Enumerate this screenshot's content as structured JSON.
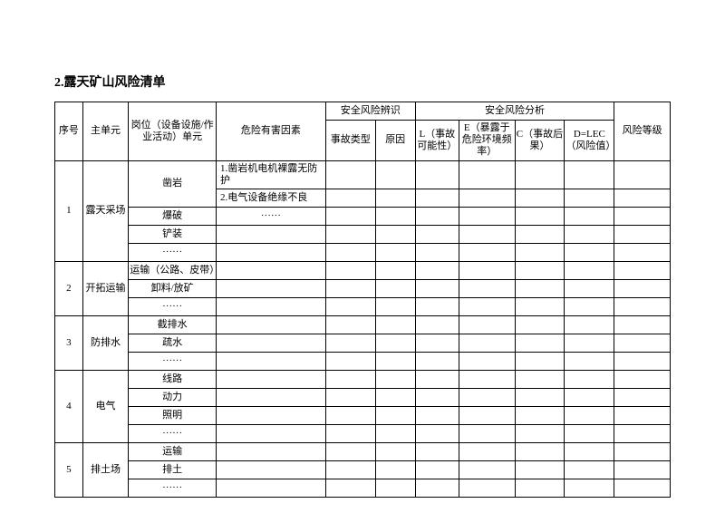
{
  "title": "2.露天矿山风险清单",
  "headers": {
    "seq": "序号",
    "main_unit": "主单元",
    "post": "岗位（设备设施/作业活动）单元",
    "hazard": "危险有害因素",
    "risk_ident": "安全风险辨识",
    "accident_type": "事故类型",
    "cause": "原因",
    "risk_analysis": "安全风险分析",
    "l": "L（事故可能性）",
    "e": "E（暴露于危险环境频率）",
    "c": "C（事故后果）",
    "d": "D=LEC（风险值）",
    "risk_level": "风险等级"
  },
  "sections": [
    {
      "seq": "1",
      "unit": "露天采场",
      "rows": [
        {
          "post": "凿岩",
          "post_rowspan": 2,
          "hazard": "1.凿岩机电机裸露无防护"
        },
        {
          "hazard": "2.电气设备绝缘不良"
        },
        {
          "post": "爆破",
          "hazard": "······"
        },
        {
          "post": "铲装",
          "hazard": ""
        },
        {
          "post": "······",
          "hazard": ""
        }
      ]
    },
    {
      "seq": "2",
      "unit": "开拓运输",
      "rows": [
        {
          "post": "运输（公路、皮带）",
          "hazard": ""
        },
        {
          "post": "卸料/放矿",
          "hazard": ""
        },
        {
          "post": "······",
          "hazard": ""
        }
      ]
    },
    {
      "seq": "3",
      "unit": "防排水",
      "rows": [
        {
          "post": "截排水",
          "hazard": ""
        },
        {
          "post": "疏水",
          "hazard": ""
        },
        {
          "post": "······",
          "hazard": ""
        }
      ]
    },
    {
      "seq": "4",
      "unit": "电气",
      "rows": [
        {
          "post": "线路",
          "hazard": ""
        },
        {
          "post": "动力",
          "hazard": ""
        },
        {
          "post": "照明",
          "hazard": ""
        },
        {
          "post": "······",
          "hazard": ""
        }
      ]
    },
    {
      "seq": "5",
      "unit": "排土场",
      "rows": [
        {
          "post": "运输",
          "hazard": ""
        },
        {
          "post": "排土",
          "hazard": ""
        },
        {
          "post": "······",
          "hazard": ""
        }
      ]
    }
  ]
}
